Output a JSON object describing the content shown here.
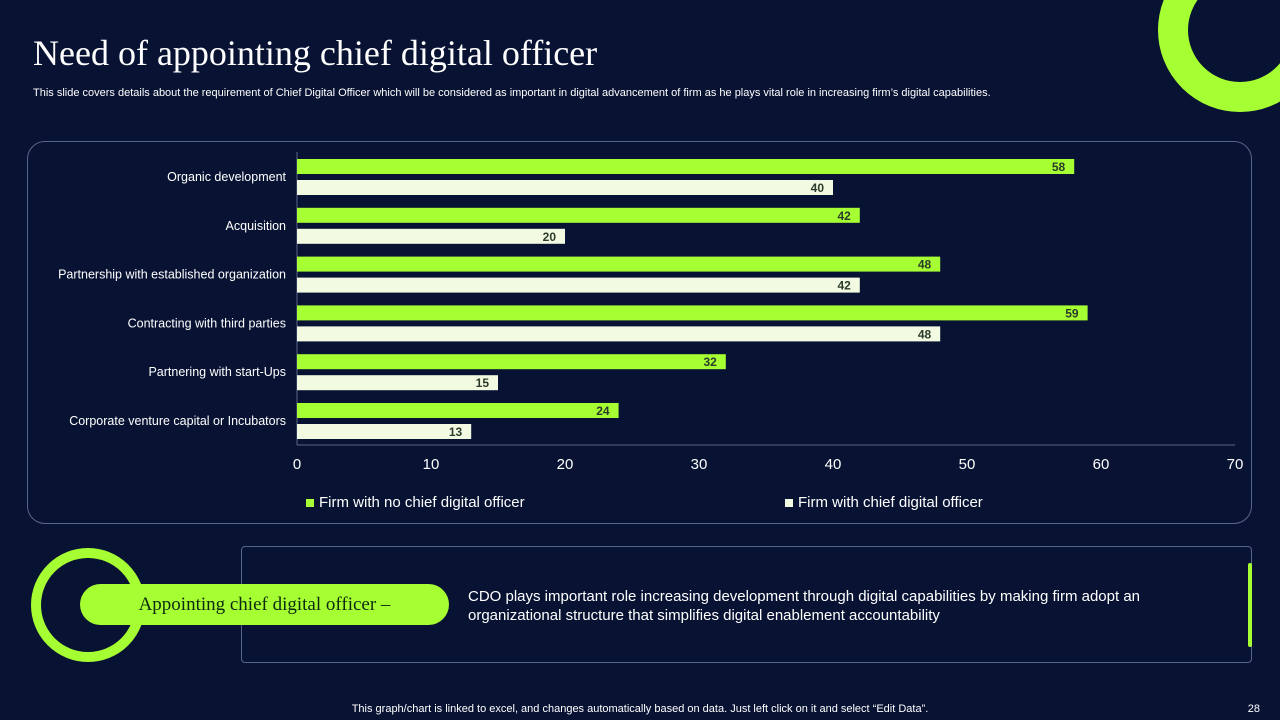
{
  "title": "Need of appointing chief digital officer",
  "subtitle": "This slide covers details about the requirement of Chief Digital Officer which will be considered as important in digital advancement of firm as he plays vital role in increasing firm’s digital capabilities.",
  "chart_data": {
    "type": "bar",
    "orientation": "horizontal",
    "categories": [
      "Organic development",
      "Acquisition",
      "Partnership with established organization",
      "Contracting with third parties",
      "Partnering with start-Ups",
      "Corporate venture capital or Incubators"
    ],
    "series": [
      {
        "name": "Firm with no chief digital officer",
        "values": [
          58,
          42,
          48,
          59,
          32,
          24
        ],
        "color": "#a6ff33"
      },
      {
        "name": "Firm with chief digital officer",
        "values": [
          40,
          20,
          42,
          48,
          15,
          13
        ],
        "color": "#f2fbe2"
      }
    ],
    "xlim": [
      0,
      70
    ],
    "xticks": [
      0,
      10,
      20,
      30,
      40,
      50,
      60,
      70
    ],
    "grid": false,
    "legend": "bottom"
  },
  "callout": {
    "label": "Appointing chief digital officer –",
    "text": "CDO plays important role increasing development through  digital capabilities by making firm adopt an organizational structure  that simplifies digital enablement  accountability"
  },
  "footer": "This graph/chart is linked to excel,  and changes automatically based on data. Just left click on it and select “Edit Data”.",
  "page_number": "28"
}
